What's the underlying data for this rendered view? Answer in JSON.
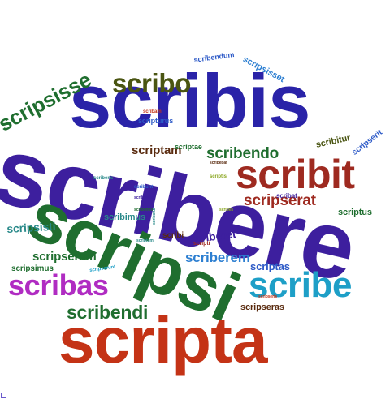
{
  "words": [
    {
      "text": "scribere",
      "color": "#3d1f9e"
    },
    {
      "text": "scribis",
      "color": "#2a23a8"
    },
    {
      "text": "scripsi",
      "color": "#1f6e2f"
    },
    {
      "text": "scripta",
      "color": "#c43316"
    },
    {
      "text": "scribit",
      "color": "#9e2a20"
    },
    {
      "text": "scribe",
      "color": "#1e9fc7"
    },
    {
      "text": "scribas",
      "color": "#b02cc2"
    },
    {
      "text": "scripsisse",
      "color": "#1f6e2f"
    },
    {
      "text": "scribo",
      "color": "#4a5512"
    },
    {
      "text": "scribendi",
      "color": "#1f6e2f"
    },
    {
      "text": "scribendo",
      "color": "#1f6e2f"
    },
    {
      "text": "scripserat",
      "color": "#9e2a20"
    },
    {
      "text": "scriberem",
      "color": "#2d7fd1"
    },
    {
      "text": "scriptam",
      "color": "#5a2b0f"
    },
    {
      "text": "scripseram",
      "color": "#1f6e2f"
    },
    {
      "text": "scripsisti",
      "color": "#2a8a8a"
    },
    {
      "text": "scriberet",
      "color": "#3d1f9e"
    },
    {
      "text": "scriptas",
      "color": "#2d5ac7"
    },
    {
      "text": "scripseras",
      "color": "#5a2b0f"
    },
    {
      "text": "scribimus",
      "color": "#2a8a8a"
    },
    {
      "text": "scripsimus",
      "color": "#1f6e2f"
    },
    {
      "text": "scripsisset",
      "color": "#2d7fd1"
    },
    {
      "text": "scribendum",
      "color": "#2d5ac7"
    },
    {
      "text": "scripserit",
      "color": "#2d5ac7"
    },
    {
      "text": "scribitur",
      "color": "#4a5512"
    },
    {
      "text": "scriptus",
      "color": "#1f6e2f"
    },
    {
      "text": "scripturus",
      "color": "#2d5ac7"
    },
    {
      "text": "scriptae",
      "color": "#1f6e2f"
    },
    {
      "text": "scribi",
      "color": "#5a2b0f"
    },
    {
      "text": "scribat",
      "color": "#3d1f9e"
    },
    {
      "text": "scribam",
      "color": "#c43316"
    },
    {
      "text": "scribens",
      "color": "#2a8a8a"
    },
    {
      "text": "scribunt",
      "color": "#2d5ac7"
    },
    {
      "text": "scribenda",
      "color": "#3d1f9e"
    },
    {
      "text": "scribentis",
      "color": "#1f6e2f"
    },
    {
      "text": "scribebat",
      "color": "#5a2b0f"
    },
    {
      "text": "scriptis",
      "color": "#8aa61f"
    },
    {
      "text": "scribes",
      "color": "#8aa61f"
    },
    {
      "text": "scripti",
      "color": "#9e2a20"
    },
    {
      "text": "scriptum",
      "color": "#2a8a8a"
    },
    {
      "text": "scripserunt",
      "color": "#1e9fc7"
    },
    {
      "text": "scripseris",
      "color": "#c43316"
    },
    {
      "text": "scribetur",
      "color": "#2a8a8a"
    }
  ]
}
